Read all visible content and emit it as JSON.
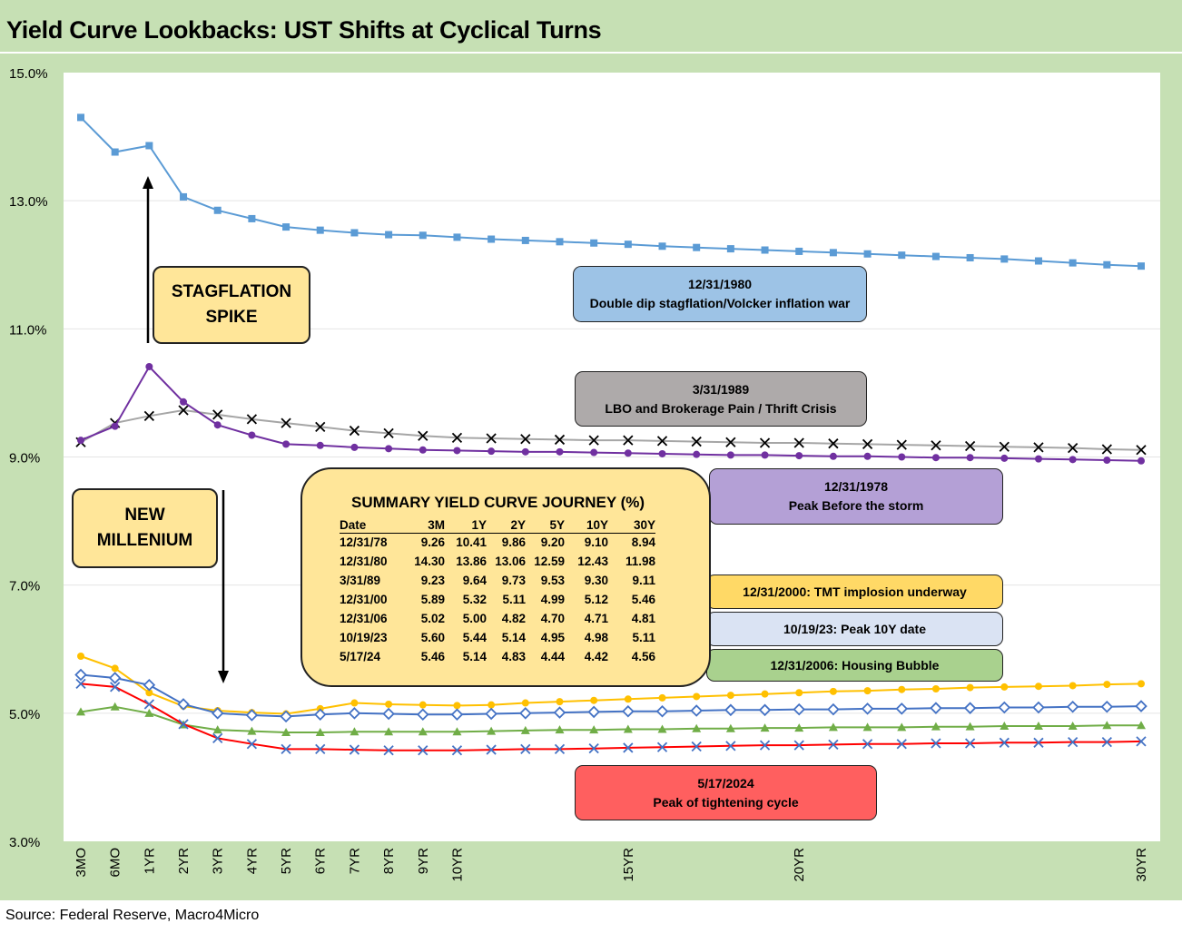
{
  "header": {
    "title": "Yield Curve Lookbacks: UST Shifts at Cyclical Turns"
  },
  "footer": {
    "source": "Source: Federal Reserve, Macro4Micro"
  },
  "chart_data": {
    "type": "line",
    "title": "Yield Curve Lookbacks: UST Shifts at Cyclical Turns",
    "ylim": [
      3.0,
      15.0
    ],
    "y_ticks": [
      "15.0%",
      "13.0%",
      "11.0%",
      "9.0%",
      "7.0%",
      "5.0%",
      "3.0%"
    ],
    "grid": "horizontal",
    "x_ticks": [
      "3MO",
      "6MO",
      "1YR",
      "2YR",
      "3YR",
      "4YR",
      "5YR",
      "6YR",
      "7YR",
      "8YR",
      "9YR",
      "10YR",
      "15YR",
      "20YR",
      "30YR"
    ],
    "x": [
      0.25,
      0.5,
      1,
      2,
      3,
      4,
      5,
      6,
      7,
      8,
      9,
      10,
      11,
      12,
      13,
      14,
      15,
      16,
      17,
      18,
      19,
      20,
      21,
      22,
      23,
      24,
      25,
      26,
      27,
      28,
      29,
      30
    ],
    "series": [
      {
        "name": "12/31/1980",
        "color": "#5b9bd5",
        "marker": "square",
        "values": [
          14.3,
          13.76,
          13.86,
          13.06,
          12.85,
          12.72,
          12.59,
          12.54,
          12.5,
          12.47,
          12.46,
          12.43,
          12.4,
          12.38,
          12.36,
          12.34,
          12.32,
          12.29,
          12.27,
          12.25,
          12.23,
          12.21,
          12.19,
          12.17,
          12.15,
          12.13,
          12.11,
          12.09,
          12.06,
          12.03,
          12.0,
          11.98
        ]
      },
      {
        "name": "3/31/1989",
        "color": "#a6a6a6",
        "marker": "x",
        "values": [
          9.23,
          9.53,
          9.64,
          9.73,
          9.66,
          9.59,
          9.53,
          9.47,
          9.41,
          9.37,
          9.33,
          9.3,
          9.29,
          9.28,
          9.27,
          9.26,
          9.26,
          9.25,
          9.24,
          9.23,
          9.22,
          9.22,
          9.21,
          9.2,
          9.19,
          9.18,
          9.17,
          9.16,
          9.15,
          9.14,
          9.12,
          9.11
        ]
      },
      {
        "name": "12/31/1978",
        "color": "#7030a0",
        "marker": "circle",
        "values": [
          9.26,
          9.48,
          10.41,
          9.86,
          9.5,
          9.34,
          9.2,
          9.18,
          9.15,
          9.13,
          9.11,
          9.1,
          9.09,
          9.08,
          9.08,
          9.07,
          9.06,
          9.05,
          9.04,
          9.03,
          9.03,
          9.02,
          9.01,
          9.01,
          9.0,
          8.99,
          8.99,
          8.98,
          8.97,
          8.96,
          8.95,
          8.94
        ]
      },
      {
        "name": "12/31/2000: TMT implosion underway",
        "color": "#ffc000",
        "marker": "circle",
        "values": [
          5.89,
          5.7,
          5.32,
          5.11,
          5.04,
          5.01,
          4.99,
          5.07,
          5.16,
          5.14,
          5.13,
          5.12,
          5.13,
          5.16,
          5.18,
          5.2,
          5.22,
          5.24,
          5.26,
          5.28,
          5.3,
          5.32,
          5.34,
          5.35,
          5.37,
          5.38,
          5.4,
          5.41,
          5.42,
          5.43,
          5.45,
          5.46
        ]
      },
      {
        "name": "10/19/23: Peak 10Y date",
        "color": "#4472c4",
        "marker": "diamond",
        "values": [
          5.6,
          5.55,
          5.44,
          5.14,
          5.0,
          4.97,
          4.95,
          4.98,
          5.0,
          4.99,
          4.98,
          4.98,
          4.99,
          5.0,
          5.01,
          5.02,
          5.03,
          5.03,
          5.04,
          5.05,
          5.05,
          5.06,
          5.06,
          5.07,
          5.07,
          5.08,
          5.08,
          5.09,
          5.09,
          5.1,
          5.1,
          5.11
        ]
      },
      {
        "name": "12/31/2006: Housing Bubble",
        "color": "#70ad47",
        "marker": "triangle",
        "values": [
          5.02,
          5.1,
          5.0,
          4.82,
          4.74,
          4.72,
          4.7,
          4.7,
          4.71,
          4.71,
          4.71,
          4.71,
          4.72,
          4.73,
          4.74,
          4.74,
          4.75,
          4.75,
          4.76,
          4.76,
          4.77,
          4.77,
          4.78,
          4.78,
          4.78,
          4.79,
          4.79,
          4.8,
          4.8,
          4.8,
          4.81,
          4.81
        ]
      },
      {
        "name": "5/17/2024",
        "color": "#ff0000",
        "marker": "x",
        "marker_color": "#4472c4",
        "values": [
          5.46,
          5.41,
          5.14,
          4.83,
          4.61,
          4.52,
          4.44,
          4.44,
          4.43,
          4.42,
          4.42,
          4.42,
          4.43,
          4.44,
          4.44,
          4.45,
          4.46,
          4.47,
          4.48,
          4.49,
          4.5,
          4.5,
          4.51,
          4.52,
          4.52,
          4.53,
          4.53,
          4.54,
          4.54,
          4.55,
          4.55,
          4.56
        ]
      }
    ],
    "labels": {
      "l1980": {
        "line1": "12/31/1980",
        "line2": "Double dip stagflation/Volcker inflation war",
        "bg": "#9dc3e6"
      },
      "l1989": {
        "line1": "3/31/1989",
        "line2": "LBO and Brokerage Pain / Thrift Crisis",
        "bg": "#aeaaaa"
      },
      "l1978": {
        "line1": "12/31/1978",
        "line2": "Peak Before the storm",
        "bg": "#b4a0d6"
      },
      "l2000": {
        "line1": "12/31/2000: TMT implosion underway",
        "bg": "#ffd966"
      },
      "l2023": {
        "line1": "10/19/23: Peak 10Y date",
        "bg": "#dae3f3"
      },
      "l2006": {
        "line1": "12/31/2006: Housing Bubble",
        "bg": "#a9d18e"
      },
      "l2024": {
        "line1": "5/17/2024",
        "line2": "Peak of tightening cycle",
        "bg": "#ff5f5f"
      }
    },
    "callouts": {
      "stagflation": {
        "line1": "STAGFLATION",
        "line2": "SPIKE"
      },
      "millenium": {
        "line1": "NEW",
        "line2": "MILLENIUM"
      }
    },
    "summary": {
      "title": "SUMMARY YIELD CURVE JOURNEY (%)",
      "headers": [
        "Date",
        "3M",
        "1Y",
        "2Y",
        "5Y",
        "10Y",
        "30Y"
      ],
      "rows": [
        [
          "12/31/78",
          "9.26",
          "10.41",
          "9.86",
          "9.20",
          "9.10",
          "8.94"
        ],
        [
          "12/31/80",
          "14.30",
          "13.86",
          "13.06",
          "12.59",
          "12.43",
          "11.98"
        ],
        [
          "3/31/89",
          "9.23",
          "9.64",
          "9.73",
          "9.53",
          "9.30",
          "9.11"
        ],
        [
          "12/31/00",
          "5.89",
          "5.32",
          "5.11",
          "4.99",
          "5.12",
          "5.46"
        ],
        [
          "12/31/06",
          "5.02",
          "5.00",
          "4.82",
          "4.70",
          "4.71",
          "4.81"
        ],
        [
          "10/19/23",
          "5.60",
          "5.44",
          "5.14",
          "4.95",
          "4.98",
          "5.11"
        ],
        [
          "5/17/24",
          "5.46",
          "5.14",
          "4.83",
          "4.44",
          "4.42",
          "4.56"
        ]
      ]
    }
  }
}
